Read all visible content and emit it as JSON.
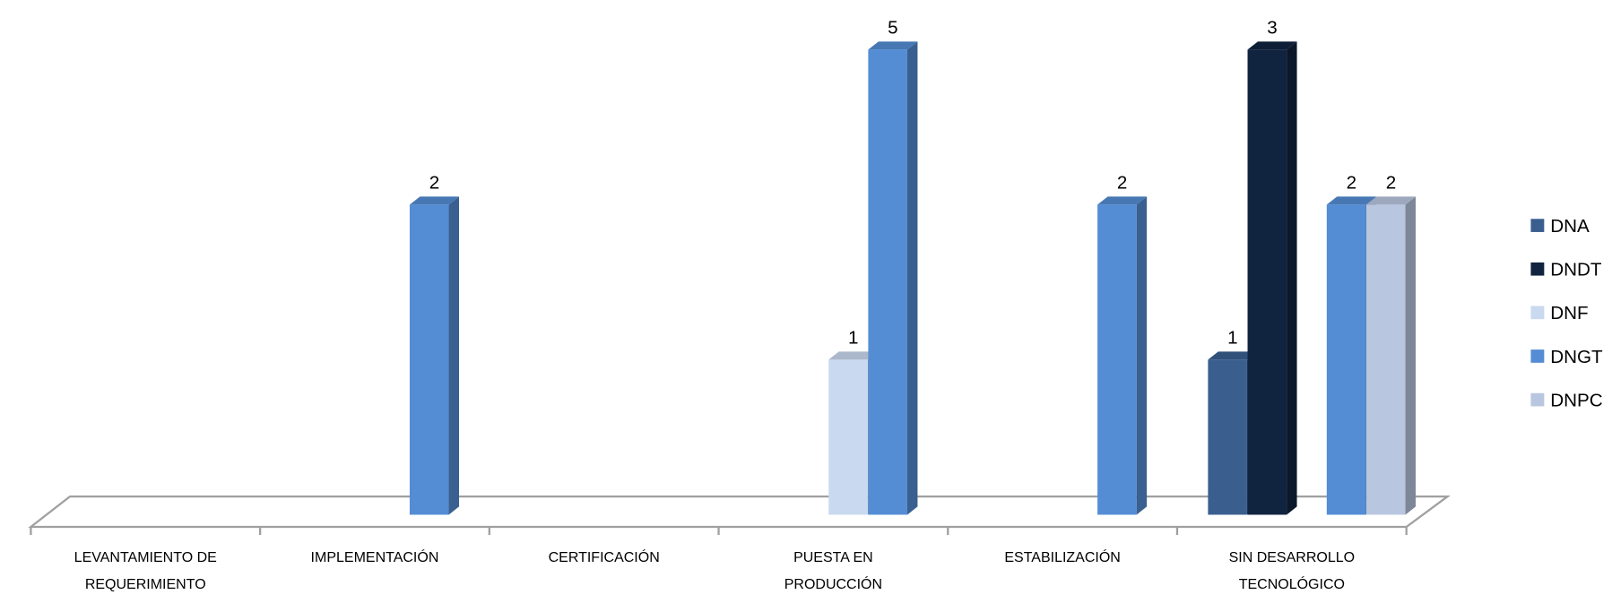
{
  "chart_data": {
    "type": "bar3d",
    "categories": [
      "LEVANTAMIENTO DE REQUERIMIENTO",
      "IMPLEMENTACIÓN",
      "CERTIFICACIÓN",
      "PUESTA EN PRODUCCIÓN",
      "ESTABILIZACIÓN",
      "SIN DESARROLLO TECNOLÓGICO"
    ],
    "series": [
      {
        "name": "DNA",
        "color": "#3a5f8f",
        "values": [
          null,
          null,
          null,
          null,
          null,
          1
        ]
      },
      {
        "name": "DNDT",
        "color": "#10233f",
        "values": [
          null,
          null,
          null,
          null,
          null,
          3
        ]
      },
      {
        "name": "DNF",
        "color": "#c9d9ef",
        "values": [
          null,
          null,
          null,
          1,
          null,
          null
        ]
      },
      {
        "name": "DNGT",
        "color": "#548dd4",
        "values": [
          null,
          2,
          null,
          5,
          2,
          2
        ]
      },
      {
        "name": "DNPC",
        "color": "#b9c6df",
        "values": [
          null,
          null,
          null,
          null,
          null,
          2
        ]
      }
    ],
    "ylim": [
      0,
      3
    ],
    "legend": "right"
  }
}
